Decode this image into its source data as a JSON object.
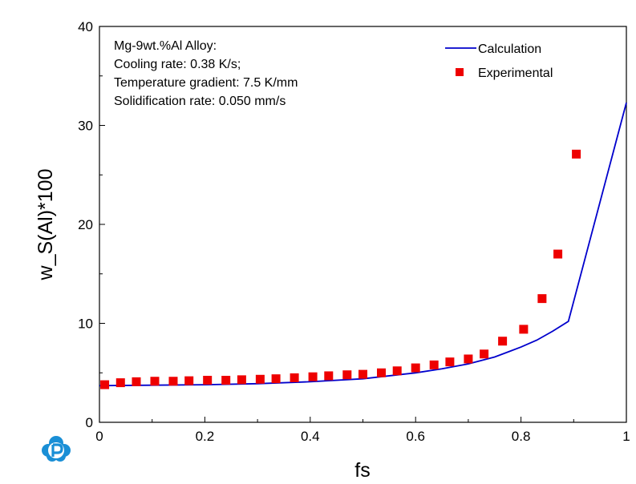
{
  "chart_data": {
    "type": "scatter",
    "title": "",
    "xlabel": "fs",
    "ylabel": "w_S(Al)*100",
    "xlim": [
      0,
      1
    ],
    "ylim": [
      0,
      40
    ],
    "x_ticks": [
      0,
      0.2,
      0.4,
      0.6,
      0.8,
      1
    ],
    "x_tick_labels": [
      "0",
      "0.2",
      "0.4",
      "0.6",
      "0.8",
      "1"
    ],
    "y_ticks": [
      0,
      10,
      20,
      30,
      40
    ],
    "y_tick_labels": [
      "0",
      "10",
      "20",
      "30",
      "40"
    ],
    "grid": false,
    "legend_position": "top-right",
    "annotation_lines": [
      "Mg-9wt.%Al Alloy:",
      "Cooling rate: 0.38 K/s;",
      "Temperature gradient: 7.5 K/mm",
      "Solidification rate: 0.050 mm/s"
    ],
    "series": [
      {
        "name": "Calculation",
        "kind": "line",
        "color": "#0000cc",
        "x": [
          0,
          0.1,
          0.2,
          0.3,
          0.4,
          0.5,
          0.6,
          0.65,
          0.7,
          0.75,
          0.8,
          0.83,
          0.86,
          0.89,
          1.0
        ],
        "y": [
          3.7,
          3.75,
          3.8,
          3.9,
          4.1,
          4.4,
          5.0,
          5.4,
          5.9,
          6.6,
          7.6,
          8.3,
          9.2,
          10.2,
          32.3
        ]
      },
      {
        "name": "Experimental",
        "kind": "scatter",
        "color": "#ee0000",
        "x": [
          0.01,
          0.04,
          0.07,
          0.105,
          0.14,
          0.17,
          0.205,
          0.24,
          0.27,
          0.305,
          0.335,
          0.37,
          0.405,
          0.435,
          0.47,
          0.5,
          0.535,
          0.565,
          0.6,
          0.635,
          0.665,
          0.7,
          0.73,
          0.765,
          0.805,
          0.84,
          0.87,
          0.905
        ],
        "y": [
          3.8,
          4.0,
          4.1,
          4.15,
          4.15,
          4.2,
          4.25,
          4.25,
          4.3,
          4.35,
          4.4,
          4.5,
          4.6,
          4.7,
          4.8,
          4.85,
          5.0,
          5.2,
          5.5,
          5.8,
          6.1,
          6.4,
          6.9,
          8.2,
          9.4,
          12.5,
          17.0,
          27.1
        ]
      }
    ]
  },
  "logo": {
    "name": "p-logo-icon",
    "color": "#1a8fd6"
  }
}
